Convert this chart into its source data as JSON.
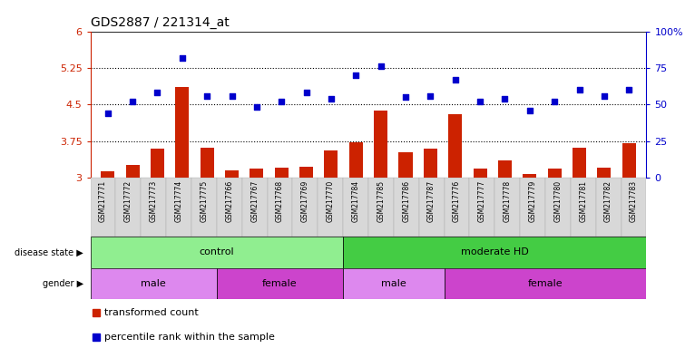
{
  "title": "GDS2887 / 221314_at",
  "samples": [
    "GSM217771",
    "GSM217772",
    "GSM217773",
    "GSM217774",
    "GSM217775",
    "GSM217766",
    "GSM217767",
    "GSM217768",
    "GSM217769",
    "GSM217770",
    "GSM217784",
    "GSM217785",
    "GSM217786",
    "GSM217787",
    "GSM217776",
    "GSM217777",
    "GSM217778",
    "GSM217779",
    "GSM217780",
    "GSM217781",
    "GSM217782",
    "GSM217783"
  ],
  "bar_values": [
    3.12,
    3.25,
    3.6,
    4.85,
    3.62,
    3.15,
    3.18,
    3.2,
    3.22,
    3.55,
    3.72,
    4.38,
    3.52,
    3.6,
    4.3,
    3.18,
    3.35,
    3.08,
    3.18,
    3.62,
    3.2,
    3.7
  ],
  "scatter_values": [
    44,
    52,
    58,
    82,
    56,
    56,
    48,
    52,
    58,
    54,
    70,
    76,
    55,
    56,
    67,
    52,
    54,
    46,
    52,
    60,
    56,
    60
  ],
  "ylim_left": [
    3.0,
    6.0
  ],
  "ylim_right": [
    0,
    100
  ],
  "yticks_left": [
    3.0,
    3.75,
    4.5,
    5.25,
    6.0
  ],
  "yticks_right": [
    0,
    25,
    50,
    75,
    100
  ],
  "ytick_labels_left": [
    "3",
    "3.75",
    "4.5",
    "5.25",
    "6"
  ],
  "ytick_labels_right": [
    "0",
    "25",
    "50",
    "75",
    "100%"
  ],
  "hlines": [
    3.75,
    4.5,
    5.25
  ],
  "bar_color": "#cc2200",
  "scatter_color": "#0000cc",
  "bar_bottom": 3.0,
  "disease_state_groups": [
    {
      "label": "control",
      "start": 0,
      "end": 10,
      "color": "#90ee90"
    },
    {
      "label": "moderate HD",
      "start": 10,
      "end": 22,
      "color": "#44cc44"
    }
  ],
  "gender_groups": [
    {
      "label": "male",
      "start": 0,
      "end": 5,
      "color": "#dd88ee"
    },
    {
      "label": "female",
      "start": 5,
      "end": 10,
      "color": "#cc44cc"
    },
    {
      "label": "male",
      "start": 10,
      "end": 14,
      "color": "#dd88ee"
    },
    {
      "label": "female",
      "start": 14,
      "end": 22,
      "color": "#cc44cc"
    }
  ],
  "legend_items": [
    {
      "label": "transformed count",
      "color": "#cc2200",
      "marker": "s"
    },
    {
      "label": "percentile rank within the sample",
      "color": "#0000cc",
      "marker": "s"
    }
  ],
  "left_axis_color": "#cc2200",
  "right_axis_color": "#0000cc",
  "fig_width": 7.66,
  "fig_height": 3.84,
  "dpi": 100
}
